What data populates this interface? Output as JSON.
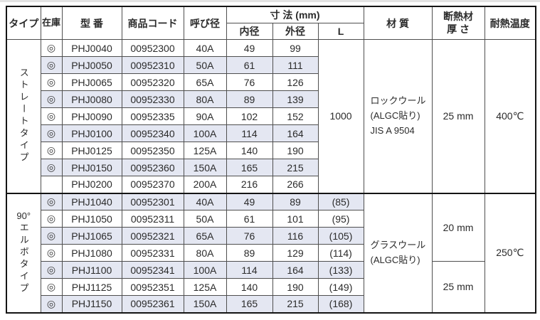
{
  "colors": {
    "row_alt": "#e4e7f2",
    "border_outer": "#141414",
    "border_inner": "#4f4f4f",
    "text": "#2b2b2b"
  },
  "table": {
    "headers": {
      "type": "タイプ",
      "stock": "在庫",
      "model": "型 番",
      "product_code": "商品コード",
      "nominal_dia": "呼び径",
      "dimensions": "寸 法 (mm)",
      "inner_dia": "内径",
      "outer_dia": "外径",
      "length": "L",
      "material": "材 質",
      "insulation": "断熱材\n厚 さ",
      "heat_temp": "耐熱温度"
    },
    "stock_symbol": "◎",
    "sections": [
      {
        "type_prefix": "",
        "type_label": "ストレートタイプ",
        "rows": [
          {
            "stock": "◎",
            "model": "PHJ0040",
            "code": "00952300",
            "size": "40A",
            "inner": "49",
            "outer": "99"
          },
          {
            "stock": "◎",
            "model": "PHJ0050",
            "code": "00952310",
            "size": "50A",
            "inner": "61",
            "outer": "111"
          },
          {
            "stock": "◎",
            "model": "PHJ0065",
            "code": "00952320",
            "size": "65A",
            "inner": "76",
            "outer": "126"
          },
          {
            "stock": "◎",
            "model": "PHJ0080",
            "code": "00952330",
            "size": "80A",
            "inner": "89",
            "outer": "139"
          },
          {
            "stock": "◎",
            "model": "PHJ0090",
            "code": "00952335",
            "size": "90A",
            "inner": "102",
            "outer": "152"
          },
          {
            "stock": "◎",
            "model": "PHJ0100",
            "code": "00952340",
            "size": "100A",
            "inner": "114",
            "outer": "164"
          },
          {
            "stock": "◎",
            "model": "PHJ0125",
            "code": "00952350",
            "size": "125A",
            "inner": "140",
            "outer": "190"
          },
          {
            "stock": "◎",
            "model": "PHJ0150",
            "code": "00952360",
            "size": "150A",
            "inner": "165",
            "outer": "215"
          },
          {
            "stock": "",
            "model": "PHJ0200",
            "code": "00952370",
            "size": "200A",
            "inner": "216",
            "outer": "266"
          }
        ],
        "length_merged": "1000",
        "material": "ロックウール\n(ALGC貼り)\nJIS A 9504",
        "thickness_groups": [
          {
            "label": "25 mm",
            "span": 9
          }
        ],
        "heat_temp": "400℃"
      },
      {
        "type_prefix": "90°",
        "type_label": "エルボタイプ",
        "rows": [
          {
            "stock": "◎",
            "model": "PHJ1040",
            "code": "00952301",
            "size": "40A",
            "inner": "49",
            "outer": "89",
            "length": "(85)"
          },
          {
            "stock": "◎",
            "model": "PHJ1050",
            "code": "00952311",
            "size": "50A",
            "inner": "61",
            "outer": "101",
            "length": "(95)"
          },
          {
            "stock": "◎",
            "model": "PHJ1065",
            "code": "00952321",
            "size": "65A",
            "inner": "76",
            "outer": "116",
            "length": "(105)"
          },
          {
            "stock": "◎",
            "model": "PHJ1080",
            "code": "00952331",
            "size": "80A",
            "inner": "89",
            "outer": "129",
            "length": "(114)"
          },
          {
            "stock": "◎",
            "model": "PHJ1100",
            "code": "00952341",
            "size": "100A",
            "inner": "114",
            "outer": "164",
            "length": "(133)"
          },
          {
            "stock": "◎",
            "model": "PHJ1125",
            "code": "00952351",
            "size": "125A",
            "inner": "140",
            "outer": "190",
            "length": "(149)"
          },
          {
            "stock": "◎",
            "model": "PHJ1150",
            "code": "00952361",
            "size": "150A",
            "inner": "165",
            "outer": "215",
            "length": "(168)"
          }
        ],
        "material": "グラスウール\n(ALGC貼り)",
        "thickness_groups": [
          {
            "label": "20 mm",
            "span": 4
          },
          {
            "label": "25 mm",
            "span": 3
          }
        ],
        "heat_temp": "250℃"
      }
    ]
  }
}
